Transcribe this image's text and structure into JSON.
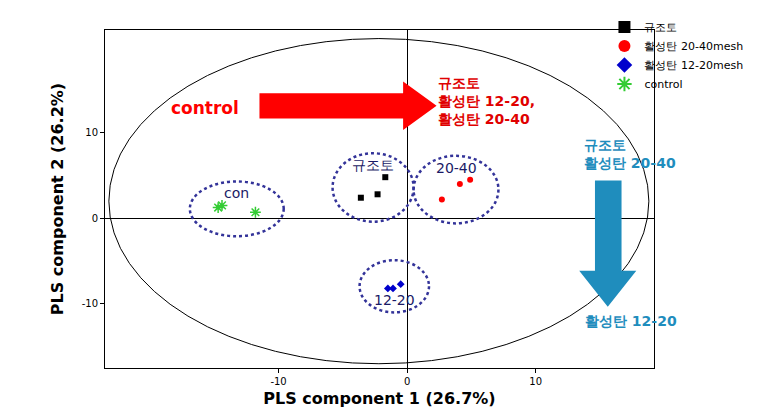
{
  "chart_data": {
    "type": "scatter",
    "xlabel": "PLS component 1 (26.7%)",
    "ylabel": "PLS component 2 (26.2%)",
    "xlim": [
      -23.5,
      19.2
    ],
    "ylim": [
      -17.5,
      22
    ],
    "xticks": [
      -10,
      0,
      10
    ],
    "yticks": [
      -10,
      0,
      10
    ],
    "grid": false,
    "legend": "top right",
    "series": [
      {
        "name": "규조토",
        "label": "규조토",
        "color": "#000000",
        "marker": "square",
        "x": [
          -3.6,
          -2.3,
          -1.7
        ],
        "y": [
          2.4,
          2.8,
          4.8
        ]
      },
      {
        "name": "활성탄 20-40mesh",
        "label": "20-40",
        "color": "#ff0000",
        "marker": "circle",
        "x": [
          2.7,
          4.1,
          4.9
        ],
        "y": [
          2.2,
          4.0,
          4.5
        ]
      },
      {
        "name": "활성탄 12-20mesh",
        "label": "12-20",
        "color": "#0000cc",
        "marker": "diamond",
        "x": [
          -1.5,
          -1.1,
          -0.5
        ],
        "y": [
          -8.2,
          -8.2,
          -7.7
        ]
      },
      {
        "name": "control",
        "label": "con",
        "color": "#33cc33",
        "marker": "asterisk",
        "x": [
          -14.7,
          -14.4,
          -11.8
        ],
        "y": [
          1.25,
          1.5,
          0.7
        ]
      }
    ],
    "ellipse": {
      "center": [
        -2.2,
        2.0
      ],
      "x_radius": 21.0,
      "y_radius": 19.0
    },
    "annotations": [
      {
        "text": "control",
        "color": "#ff0000"
      },
      {
        "text": "규조토\n활성탄 12-20,\n활성탄 20-40",
        "color": "#e00000"
      },
      {
        "text": "규조토\n활성탄 20-40",
        "color": "#1f8dbd"
      },
      {
        "text": "활성탄 12-20",
        "color": "#1f8dbd"
      }
    ]
  }
}
